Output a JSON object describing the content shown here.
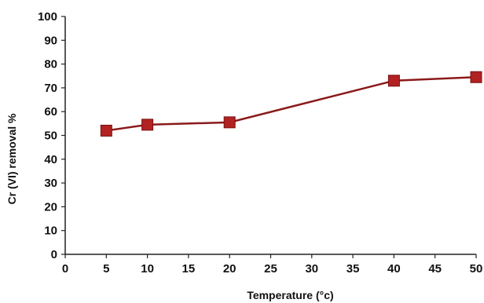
{
  "chart_data": {
    "type": "line",
    "title": "",
    "xlabel": "Temperature (°c)",
    "ylabel": "Cr (VI) removal %",
    "xlim": [
      0,
      50
    ],
    "ylim": [
      0,
      100
    ],
    "xticks": [
      0,
      5,
      10,
      15,
      20,
      25,
      30,
      35,
      40,
      45,
      50
    ],
    "yticks": [
      0,
      10,
      20,
      30,
      40,
      50,
      60,
      70,
      80,
      90,
      100
    ],
    "grid": false,
    "legend": "none",
    "series": [
      {
        "x": [
          5,
          10,
          20,
          40,
          50
        ],
        "y": [
          52,
          54.5,
          55.5,
          73,
          74.5
        ],
        "color": "#b22222",
        "marker": "square"
      }
    ]
  }
}
